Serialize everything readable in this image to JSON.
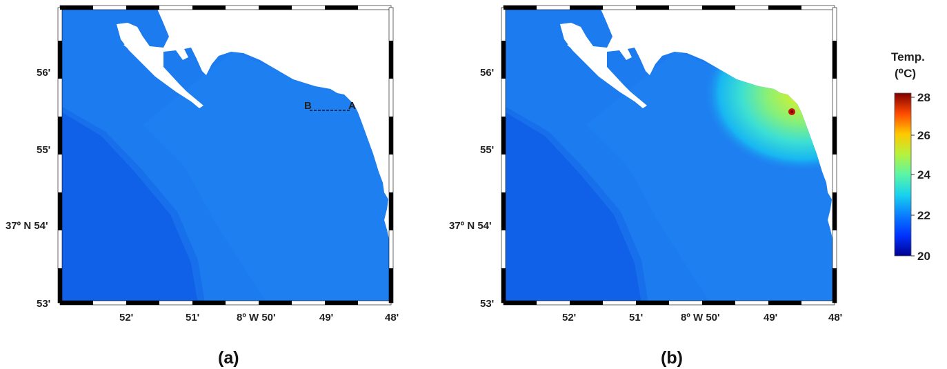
{
  "panels": [
    {
      "caption": "(a)",
      "y_ticks": [
        "56'",
        "55'",
        "37º N 54'",
        "53'"
      ],
      "x_ticks": [
        "52'",
        "51'",
        "8º W 50'",
        "49'",
        "48'"
      ],
      "section_labels": {
        "start": "B",
        "end": "A"
      }
    },
    {
      "caption": "(b)",
      "y_ticks": [
        "56'",
        "55'",
        "37º N 54'",
        "53'"
      ],
      "x_ticks": [
        "52'",
        "51'",
        "8º W 50'",
        "49'",
        "48'"
      ]
    }
  ],
  "colorbar": {
    "title_line1": "Temp.",
    "title_line2": "(⁰C)",
    "ticks": [
      "28",
      "26",
      "24",
      "22",
      "20"
    ],
    "range": [
      20,
      28
    ]
  },
  "colors": {
    "sea_base": "#1c7bef",
    "sea_deep": "#1060e6",
    "hot_spot": "#d81a10"
  }
}
